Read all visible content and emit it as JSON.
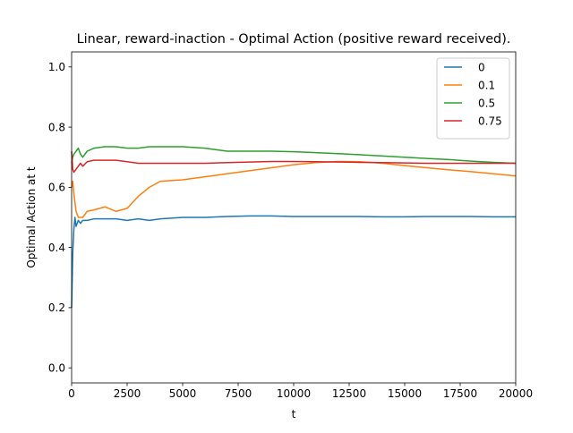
{
  "chart_data": {
    "type": "line",
    "title": "Linear, reward-inaction - Optimal Action (positive reward received).",
    "xlabel": "t",
    "ylabel": "Optimal Action at t",
    "xlim": [
      0,
      20000
    ],
    "ylim": [
      -0.05,
      1.05
    ],
    "xticks": [
      0,
      2500,
      5000,
      7500,
      10000,
      12500,
      15000,
      17500,
      20000
    ],
    "xtick_labels": [
      "0",
      "2500",
      "5000",
      "7500",
      "10000",
      "12500",
      "15000",
      "17500",
      "20000"
    ],
    "yticks": [
      0.0,
      0.2,
      0.4,
      0.6,
      0.8,
      1.0
    ],
    "ytick_labels": [
      "0.0",
      "0.2",
      "0.4",
      "0.6",
      "0.8",
      "1.0"
    ],
    "grid": false,
    "legend_position": "top-right",
    "series": [
      {
        "name": "0",
        "color": "#1f77b4",
        "x": [
          0,
          50,
          100,
          150,
          200,
          300,
          400,
          500,
          700,
          1000,
          1500,
          2000,
          2500,
          3000,
          3500,
          4000,
          5000,
          6000,
          7000,
          8000,
          9000,
          10000,
          11000,
          12000,
          13000,
          14000,
          15000,
          16000,
          17000,
          18000,
          19000,
          20000
        ],
        "y": [
          0.2,
          0.38,
          0.46,
          0.5,
          0.47,
          0.49,
          0.48,
          0.49,
          0.49,
          0.495,
          0.495,
          0.495,
          0.49,
          0.495,
          0.49,
          0.495,
          0.5,
          0.5,
          0.503,
          0.505,
          0.505,
          0.503,
          0.503,
          0.503,
          0.503,
          0.502,
          0.502,
          0.503,
          0.503,
          0.503,
          0.502,
          0.502
        ]
      },
      {
        "name": "0.1",
        "color": "#ff7f0e",
        "x": [
          0,
          50,
          100,
          200,
          300,
          500,
          700,
          1000,
          1500,
          2000,
          2500,
          3000,
          3500,
          4000,
          5000,
          6000,
          7000,
          8000,
          9000,
          10000,
          11000,
          12000,
          13000,
          14000,
          15000,
          16000,
          17000,
          18000,
          19000,
          20000
        ],
        "y": [
          0.6,
          0.62,
          0.58,
          0.52,
          0.5,
          0.5,
          0.52,
          0.525,
          0.535,
          0.52,
          0.53,
          0.57,
          0.6,
          0.62,
          0.625,
          0.635,
          0.645,
          0.655,
          0.665,
          0.675,
          0.682,
          0.686,
          0.685,
          0.68,
          0.672,
          0.665,
          0.658,
          0.652,
          0.645,
          0.638
        ]
      },
      {
        "name": "0.5",
        "color": "#2ca02c",
        "x": [
          0,
          50,
          100,
          200,
          300,
          400,
          500,
          700,
          1000,
          1500,
          2000,
          2500,
          3000,
          3500,
          4000,
          5000,
          6000,
          7000,
          8000,
          9000,
          10000,
          11000,
          12000,
          13000,
          14000,
          15000,
          16000,
          17000,
          18000,
          19000,
          20000
        ],
        "y": [
          0.68,
          0.7,
          0.71,
          0.72,
          0.73,
          0.71,
          0.7,
          0.72,
          0.73,
          0.735,
          0.735,
          0.73,
          0.73,
          0.735,
          0.735,
          0.735,
          0.73,
          0.72,
          0.72,
          0.72,
          0.718,
          0.715,
          0.712,
          0.708,
          0.704,
          0.7,
          0.696,
          0.692,
          0.687,
          0.683,
          0.68
        ]
      },
      {
        "name": "0.75",
        "color": "#d62728",
        "x": [
          0,
          50,
          100,
          200,
          300,
          400,
          500,
          700,
          1000,
          1500,
          2000,
          2500,
          3000,
          3500,
          4000,
          5000,
          6000,
          7000,
          8000,
          9000,
          10000,
          11000,
          12000,
          13000,
          14000,
          15000,
          16000,
          17000,
          18000,
          19000,
          20000
        ],
        "y": [
          0.72,
          0.66,
          0.65,
          0.66,
          0.67,
          0.68,
          0.67,
          0.685,
          0.69,
          0.69,
          0.69,
          0.685,
          0.68,
          0.68,
          0.68,
          0.68,
          0.68,
          0.682,
          0.684,
          0.686,
          0.686,
          0.685,
          0.684,
          0.683,
          0.682,
          0.681,
          0.68,
          0.68,
          0.68,
          0.68,
          0.68
        ]
      }
    ]
  }
}
